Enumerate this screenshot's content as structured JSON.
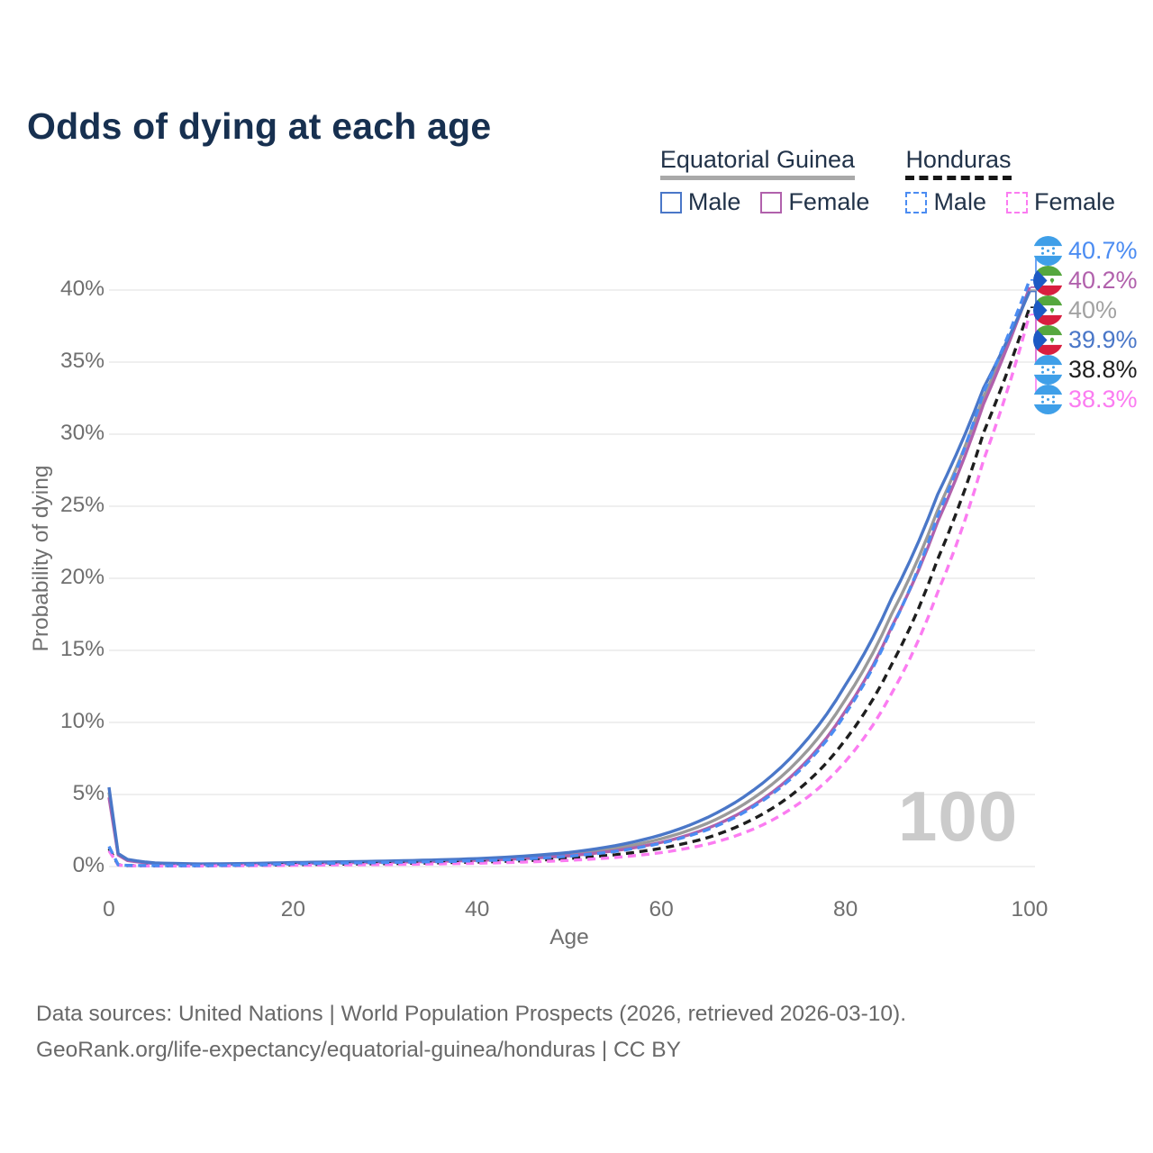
{
  "title": "Odds of dying at each age",
  "legend": {
    "groups": [
      {
        "label": "Equatorial Guinea",
        "line_style": "solid",
        "underline_color": "#a9a9a9",
        "items": [
          {
            "label": "Male",
            "color": "#4a77c8",
            "dashed": false
          },
          {
            "label": "Female",
            "color": "#b161ac",
            "dashed": false
          }
        ]
      },
      {
        "label": "Honduras",
        "line_style": "dashed",
        "underline_color": "#161616",
        "items": [
          {
            "label": "Male",
            "color": "#4b8cf2",
            "dashed": true
          },
          {
            "label": "Female",
            "color": "#fb7cf1",
            "dashed": true
          }
        ]
      }
    ]
  },
  "chart_data": {
    "type": "line",
    "title": "Odds of dying at each age",
    "xlabel": "Age",
    "ylabel": "Probability of dying",
    "xlim": [
      0,
      100
    ],
    "ylim": [
      0,
      42
    ],
    "x_ticks": [
      0,
      20,
      40,
      60,
      80,
      100
    ],
    "y_ticks": [
      40,
      35,
      30,
      25,
      20,
      15,
      10,
      5,
      0
    ],
    "y_tick_suffix": "%",
    "grid": "horizontal-only",
    "legend_position": "top-right",
    "x": [
      0,
      1,
      2,
      5,
      10,
      15,
      20,
      25,
      30,
      35,
      40,
      45,
      50,
      55,
      60,
      65,
      70,
      75,
      80,
      85,
      90,
      95,
      100
    ],
    "series": [
      {
        "name": "Equatorial Guinea Both sexes",
        "color": "#9a9a9a",
        "dashed": false,
        "end_label": "40%",
        "values": [
          5.15,
          0.85,
          0.46,
          0.23,
          0.16,
          0.19,
          0.25,
          0.3,
          0.34,
          0.4,
          0.49,
          0.63,
          0.86,
          1.27,
          1.93,
          3.0,
          4.75,
          7.45,
          11.6,
          17.5,
          24.7,
          32.6,
          40.0
        ]
      },
      {
        "name": "Equatorial Guinea Female",
        "color": "#b161ac",
        "dashed": false,
        "end_label": "40.2%",
        "values": [
          4.8,
          0.8,
          0.42,
          0.21,
          0.15,
          0.17,
          0.22,
          0.26,
          0.3,
          0.35,
          0.43,
          0.55,
          0.75,
          1.1,
          1.68,
          2.65,
          4.25,
          6.8,
          10.8,
          16.6,
          23.9,
          32.1,
          40.2
        ]
      },
      {
        "name": "Equatorial Guinea Male",
        "color": "#4a77c8",
        "dashed": false,
        "end_label": "39.9%",
        "values": [
          5.5,
          0.9,
          0.5,
          0.25,
          0.18,
          0.21,
          0.28,
          0.33,
          0.38,
          0.45,
          0.55,
          0.72,
          0.98,
          1.45,
          2.2,
          3.4,
          5.3,
          8.2,
          12.6,
          18.6,
          25.8,
          33.2,
          39.9
        ]
      },
      {
        "name": "Honduras Both sexes",
        "color": "#1e1e1e",
        "dashed": true,
        "end_label": "38.8%",
        "values": [
          1.25,
          0.11,
          0.07,
          0.05,
          0.05,
          0.08,
          0.13,
          0.17,
          0.2,
          0.25,
          0.31,
          0.4,
          0.56,
          0.82,
          1.27,
          2.0,
          3.3,
          5.4,
          8.8,
          14.0,
          21.3,
          30.1,
          38.8
        ]
      },
      {
        "name": "Honduras Female",
        "color": "#fb7cf1",
        "dashed": true,
        "end_label": "38.3%",
        "values": [
          1.1,
          0.1,
          0.06,
          0.04,
          0.04,
          0.06,
          0.09,
          0.12,
          0.14,
          0.18,
          0.23,
          0.31,
          0.43,
          0.63,
          0.97,
          1.55,
          2.6,
          4.4,
          7.3,
          12.0,
          19.0,
          28.2,
          38.3
        ]
      },
      {
        "name": "Honduras Male",
        "color": "#4b8cf2",
        "dashed": true,
        "end_label": "40.7%",
        "values": [
          1.4,
          0.12,
          0.08,
          0.06,
          0.06,
          0.1,
          0.18,
          0.24,
          0.28,
          0.33,
          0.4,
          0.52,
          0.72,
          1.05,
          1.62,
          2.55,
          4.15,
          6.65,
          10.6,
          16.5,
          24.3,
          32.9,
          40.7
        ]
      }
    ]
  },
  "end_labels": [
    {
      "flag": "honduras",
      "text": "40.7%",
      "value": 40.7,
      "color": "#4b8cf2"
    },
    {
      "flag": "equatorial-guinea",
      "text": "40.2%",
      "value": 40.2,
      "color": "#b161ac"
    },
    {
      "flag": "equatorial-guinea",
      "text": "40%",
      "value": 40.0,
      "color": "#a2a2a2"
    },
    {
      "flag": "equatorial-guinea",
      "text": "39.9%",
      "value": 39.9,
      "color": "#4a77c8"
    },
    {
      "flag": "honduras",
      "text": "38.8%",
      "value": 38.8,
      "color": "#1e1e1e"
    },
    {
      "flag": "honduras",
      "text": "38.3%",
      "value": 38.3,
      "color": "#fb7cf1"
    }
  ],
  "flag_colors": {
    "honduras_blue": "#3f9fe8",
    "gq_green": "#55a73e",
    "gq_red": "#d81e3f",
    "gq_blue": "#1d59c4"
  },
  "watermark": "100",
  "footer": {
    "line1": "Data sources: United Nations | World Population Prospects (2026, retrieved 2026-03-10).",
    "line2": "GeoRank.org/life-expectancy/equatorial-guinea/honduras | CC BY"
  }
}
